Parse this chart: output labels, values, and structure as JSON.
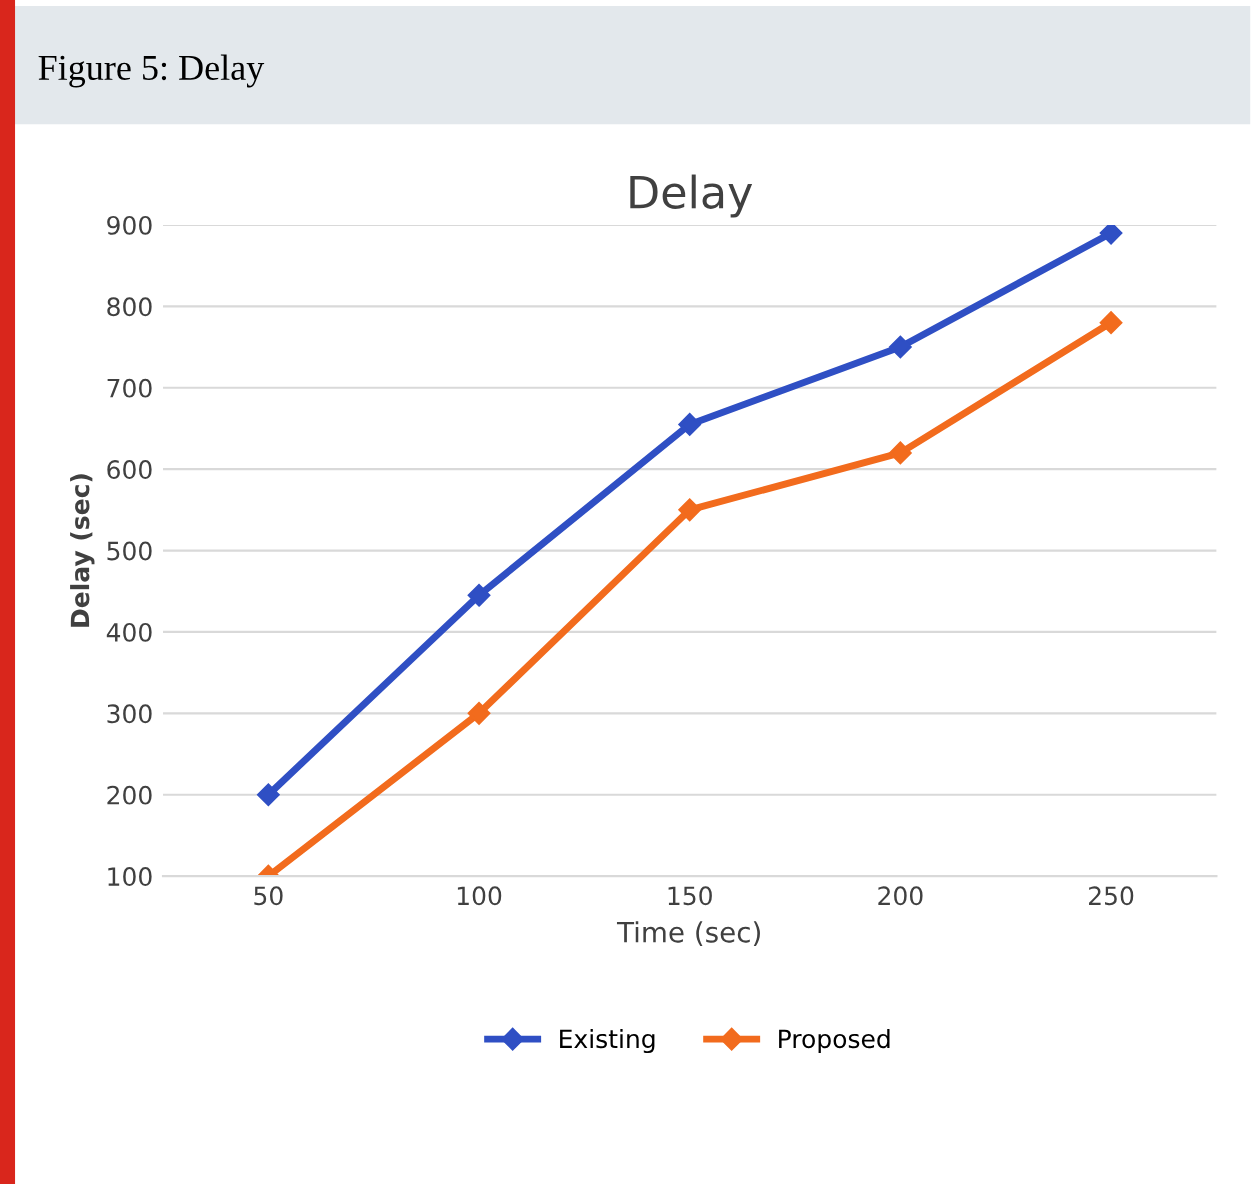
{
  "chart_data": {
    "type": "line",
    "title": "Delay",
    "xlabel": "Time (sec)",
    "ylabel": "Delay (sec)",
    "annotations": [
      "Figure 5: Delay"
    ],
    "categories": [
      "50",
      "100",
      "150",
      "200",
      "250"
    ],
    "series": [
      {
        "name": "Existing",
        "color": "#2f4fc4",
        "values": [
          200,
          445,
          655,
          750,
          890
        ]
      },
      {
        "name": "Proposed",
        "color": "#f26b1d",
        "values": [
          100,
          300,
          550,
          620,
          780
        ]
      }
    ],
    "ylim": [
      100,
      900
    ],
    "yticks": [
      100,
      200,
      300,
      400,
      500,
      600,
      700,
      800,
      900
    ],
    "grid": "y",
    "legend": "bottom",
    "marker": "diamond",
    "line_style": "solid"
  }
}
